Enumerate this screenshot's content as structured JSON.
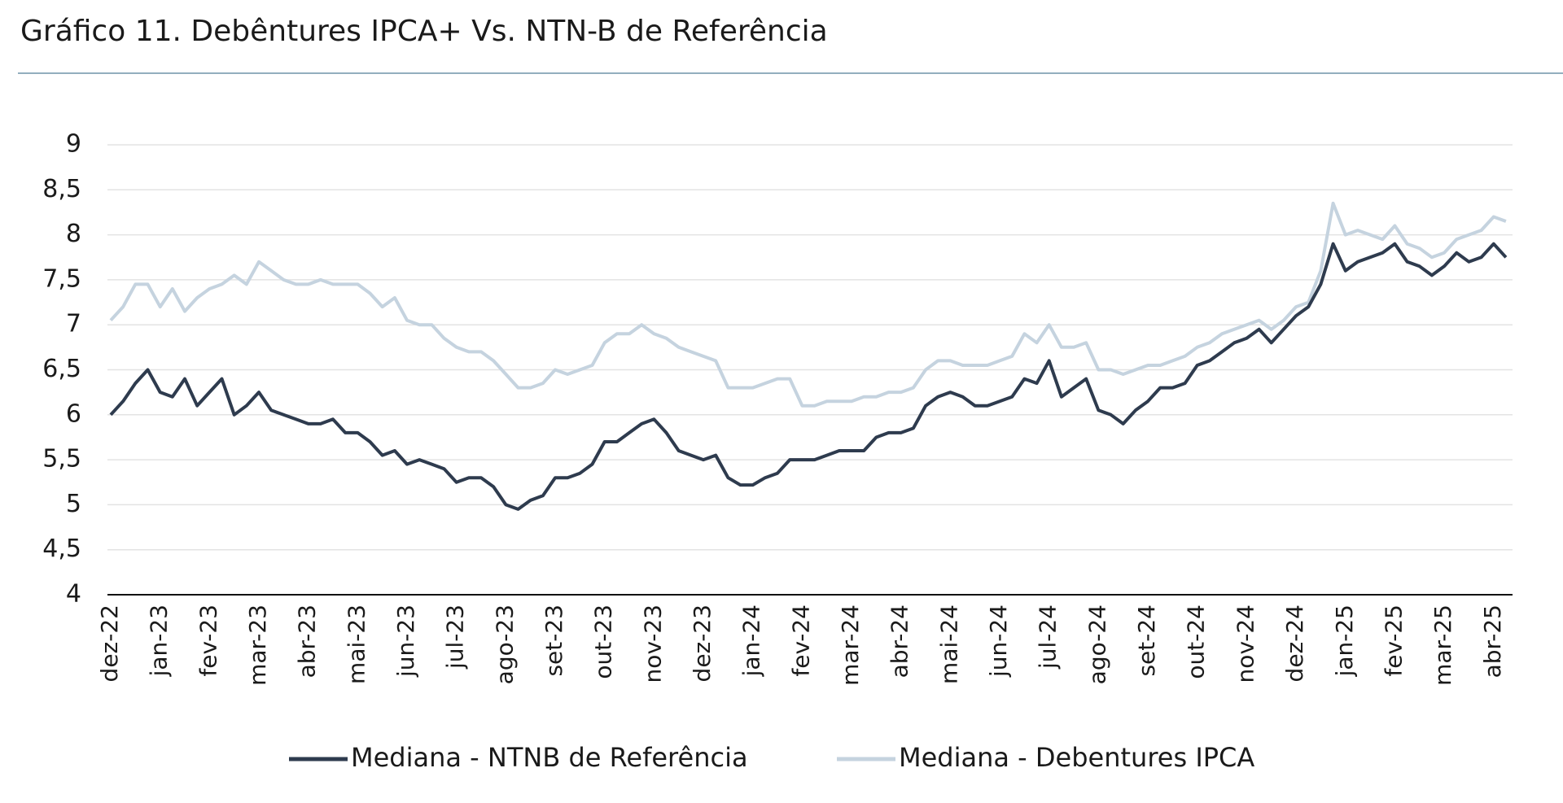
{
  "chart_data": {
    "type": "line",
    "title": "Gráfico 11. Debêntures IPCA+ Vs. NTN-B de Referência",
    "categories": [
      "dez-22",
      null,
      null,
      null,
      "jan-23",
      null,
      null,
      null,
      "fev-23",
      null,
      null,
      null,
      "mar-23",
      null,
      null,
      null,
      "abr-23",
      null,
      null,
      null,
      "mai-23",
      null,
      null,
      null,
      "jun-23",
      null,
      null,
      null,
      "jul-23",
      null,
      null,
      null,
      "ago-23",
      null,
      null,
      null,
      "set-23",
      null,
      null,
      null,
      "out-23",
      null,
      null,
      null,
      "nov-23",
      null,
      null,
      null,
      "dez-23",
      null,
      null,
      null,
      "jan-24",
      null,
      null,
      null,
      "fev-24",
      null,
      null,
      null,
      "mar-24",
      null,
      null,
      null,
      "abr-24",
      null,
      null,
      null,
      "mai-24",
      null,
      null,
      null,
      "jun-24",
      null,
      null,
      null,
      "jul-24",
      null,
      null,
      null,
      "ago-24",
      null,
      null,
      null,
      "set-24",
      null,
      null,
      null,
      "out-24",
      null,
      null,
      null,
      "nov-24",
      null,
      null,
      null,
      "dez-24",
      null,
      null,
      null,
      "jan-25",
      null,
      null,
      null,
      "fev-25",
      null,
      null,
      null,
      "mar-25",
      null,
      null,
      null,
      "abr-25",
      null
    ],
    "series": [
      {
        "name": "Mediana - NTNB de Referência",
        "color": "#2e3b4e",
        "values": [
          6.0,
          6.15,
          6.35,
          6.5,
          6.25,
          6.2,
          6.4,
          6.1,
          6.25,
          6.4,
          6.0,
          6.1,
          6.25,
          6.05,
          6.0,
          5.95,
          5.9,
          5.9,
          5.95,
          5.8,
          5.8,
          5.7,
          5.55,
          5.6,
          5.45,
          5.5,
          5.45,
          5.4,
          5.25,
          5.3,
          5.3,
          5.2,
          5.0,
          4.95,
          5.05,
          5.1,
          5.3,
          5.3,
          5.35,
          5.45,
          5.7,
          5.7,
          5.8,
          5.9,
          5.95,
          5.8,
          5.6,
          5.55,
          5.5,
          5.55,
          5.3,
          5.22,
          5.22,
          5.3,
          5.35,
          5.5,
          5.5,
          5.5,
          5.55,
          5.6,
          5.6,
          5.6,
          5.75,
          5.8,
          5.8,
          5.85,
          6.1,
          6.2,
          6.25,
          6.2,
          6.1,
          6.1,
          6.15,
          6.2,
          6.4,
          6.35,
          6.6,
          6.2,
          6.3,
          6.4,
          6.05,
          6.0,
          5.9,
          6.05,
          6.15,
          6.3,
          6.3,
          6.35,
          6.55,
          6.6,
          6.7,
          6.8,
          6.85,
          6.95,
          6.8,
          6.95,
          7.1,
          7.2,
          7.45,
          7.9,
          7.6,
          7.7,
          7.75,
          7.8,
          7.9,
          7.7,
          7.65,
          7.55,
          7.65,
          7.8,
          7.7,
          7.75,
          7.9,
          7.75
        ]
      },
      {
        "name": "Mediana - Debentures IPCA",
        "color": "#c5d3df",
        "values": [
          7.05,
          7.2,
          7.45,
          7.45,
          7.2,
          7.4,
          7.15,
          7.3,
          7.4,
          7.45,
          7.55,
          7.45,
          7.7,
          7.6,
          7.5,
          7.45,
          7.45,
          7.5,
          7.45,
          7.45,
          7.45,
          7.35,
          7.2,
          7.3,
          7.05,
          7.0,
          7.0,
          6.85,
          6.75,
          6.7,
          6.7,
          6.6,
          6.45,
          6.3,
          6.3,
          6.35,
          6.5,
          6.45,
          6.5,
          6.55,
          6.8,
          6.9,
          6.9,
          7.0,
          6.9,
          6.85,
          6.75,
          6.7,
          6.65,
          6.6,
          6.3,
          6.3,
          6.3,
          6.35,
          6.4,
          6.4,
          6.1,
          6.1,
          6.15,
          6.15,
          6.15,
          6.2,
          6.2,
          6.25,
          6.25,
          6.3,
          6.5,
          6.6,
          6.6,
          6.55,
          6.55,
          6.55,
          6.6,
          6.65,
          6.9,
          6.8,
          7.0,
          6.75,
          6.75,
          6.8,
          6.5,
          6.5,
          6.45,
          6.5,
          6.55,
          6.55,
          6.6,
          6.65,
          6.75,
          6.8,
          6.9,
          6.95,
          7.0,
          7.05,
          6.95,
          7.05,
          7.2,
          7.25,
          7.6,
          8.35,
          8.0,
          8.05,
          8.0,
          7.95,
          8.1,
          7.9,
          7.85,
          7.75,
          7.8,
          7.95,
          8.0,
          8.05,
          8.2,
          8.15
        ]
      }
    ],
    "ylim": [
      4,
      9
    ],
    "yticks": [
      4,
      {
        "value": 4.5,
        "label": "4,5"
      },
      5,
      {
        "value": 5.5,
        "label": "5,5"
      },
      6,
      {
        "value": 6.5,
        "label": "6,5"
      },
      7,
      {
        "value": 7.5,
        "label": "7,5"
      },
      8,
      {
        "value": 8.5,
        "label": "8,5"
      },
      9
    ],
    "grid": true
  }
}
